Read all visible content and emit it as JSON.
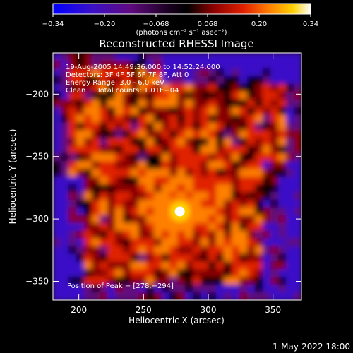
{
  "chart_data": {
    "type": "heatmap",
    "title": "Reconstructed RHESSI Image",
    "xlabel": "Heliocentric X (arcsec)",
    "ylabel": "Heliocentric Y (arcsec)",
    "xlim": [
      180,
      372
    ],
    "ylim": [
      -365,
      -167
    ],
    "xticks": [
      200,
      250,
      300,
      350
    ],
    "yticks": [
      -200,
      -250,
      -300,
      -350
    ],
    "colorbar": {
      "label": "(photons cm⁻² s⁻¹ asec⁻²)",
      "min": -0.34,
      "max": 0.34,
      "ticks": [
        "−0.34",
        "−0.20",
        "−0.068",
        "0.068",
        "0.20",
        "0.34"
      ],
      "colors": [
        "#0000ff",
        "#3a10c8",
        "#600a80",
        "#000000",
        "#8a0000",
        "#e02000",
        "#ff8000",
        "#ffd000",
        "#ffffff"
      ]
    },
    "annotations": [
      "19-Aug-2005 14:49:36.000 to 14:52:24.000",
      "Detectors: 3F 4F 5F 6F 7F 8F, Att 0",
      "Energy Range: 3.0 - 6.0 keV",
      "Clean     Total counts: 1.01E+04"
    ],
    "peak_label": "Position of Peak = [278,−294]",
    "peak": [
      278,
      -294
    ],
    "grid": false
  },
  "footer_timestamp": "1-May-2022 18:00"
}
